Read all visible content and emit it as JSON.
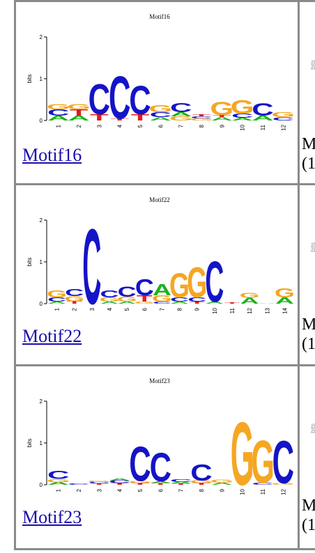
{
  "motifs": [
    {
      "name": "Motif16",
      "logo_title": "Motif16",
      "link_text": "Motif16",
      "ylabel": "bits",
      "yticks": [
        "0",
        "1",
        "2"
      ],
      "positions": [
        "1",
        "2",
        "3",
        "4",
        "5",
        "6",
        "7",
        "8",
        "9",
        "10",
        "11",
        "12"
      ],
      "columns": [
        [
          [
            "A",
            0.12
          ],
          [
            "C",
            0.15
          ],
          [
            "G",
            0.13
          ]
        ],
        [
          [
            "A",
            0.12
          ],
          [
            "T",
            0.15
          ],
          [
            "G",
            0.13
          ]
        ],
        [
          [
            "T",
            0.15
          ],
          [
            "C",
            0.75
          ]
        ],
        [
          [
            "T",
            0.05
          ],
          [
            "C",
            1.05
          ]
        ],
        [
          [
            "T",
            0.15
          ],
          [
            "C",
            0.7
          ]
        ],
        [
          [
            "A",
            0.08
          ],
          [
            "C",
            0.12
          ],
          [
            "G",
            0.18
          ]
        ],
        [
          [
            "G",
            0.1
          ],
          [
            "A",
            0.1
          ],
          [
            "C",
            0.22
          ]
        ],
        [
          [
            "G",
            0.05
          ],
          [
            "C",
            0.05
          ],
          [
            "T",
            0.05
          ]
        ],
        [
          [
            "A",
            0.08
          ],
          [
            "T",
            0.05
          ],
          [
            "G",
            0.32
          ]
        ],
        [
          [
            "A",
            0.07
          ],
          [
            "C",
            0.1
          ],
          [
            "G",
            0.33
          ]
        ],
        [
          [
            "A",
            0.12
          ],
          [
            "C",
            0.3
          ]
        ],
        [
          [
            "C",
            0.08
          ],
          [
            "G",
            0.12
          ]
        ]
      ]
    },
    {
      "name": "Motif22",
      "logo_title": "Motif22",
      "link_text": "Motif22",
      "ylabel": "bits",
      "yticks": [
        "0",
        "1",
        "2"
      ],
      "positions": [
        "1",
        "2",
        "3",
        "4",
        "5",
        "6",
        "7",
        "8",
        "9",
        "10",
        "11",
        "12",
        "13",
        "14"
      ],
      "columns": [
        [
          [
            "A",
            0.05
          ],
          [
            "C",
            0.1
          ],
          [
            "G",
            0.18
          ]
        ],
        [
          [
            "T",
            0.06
          ],
          [
            "G",
            0.12
          ],
          [
            "C",
            0.18
          ]
        ],
        [
          [
            "C",
            1.85
          ]
        ],
        [
          [
            "A",
            0.05
          ],
          [
            "G",
            0.1
          ],
          [
            "C",
            0.18
          ]
        ],
        [
          [
            "A",
            0.05
          ],
          [
            "G",
            0.12
          ],
          [
            "C",
            0.25
          ]
        ],
        [
          [
            "G",
            0.05
          ],
          [
            "T",
            0.15
          ],
          [
            "C",
            0.4
          ]
        ],
        [
          [
            "C",
            0.05
          ],
          [
            "G",
            0.15
          ],
          [
            "A",
            0.28
          ]
        ],
        [
          [
            "A",
            0.05
          ],
          [
            "C",
            0.1
          ],
          [
            "G",
            0.6
          ]
        ],
        [
          [
            "T",
            0.05
          ],
          [
            "C",
            0.1
          ],
          [
            "G",
            0.75
          ]
        ],
        [
          [
            "A",
            0.05
          ],
          [
            "C",
            1.0
          ]
        ],
        [
          [
            "T",
            0.03
          ]
        ],
        [
          [
            "A",
            0.14
          ],
          [
            "G",
            0.12
          ]
        ],
        [
          [
            "A",
            0.01
          ]
        ],
        [
          [
            "A",
            0.15
          ],
          [
            "G",
            0.22
          ]
        ]
      ]
    },
    {
      "name": "Motif23",
      "logo_title": "Motif23",
      "link_text": "Motif23",
      "ylabel": "bits",
      "yticks": [
        "0",
        "1",
        "2"
      ],
      "positions": [
        "1",
        "2",
        "3",
        "4",
        "5",
        "6",
        "7",
        "8",
        "9",
        "10",
        "11",
        "12"
      ],
      "columns": [
        [
          [
            "A",
            0.06
          ],
          [
            "G",
            0.08
          ],
          [
            "C",
            0.2
          ]
        ],
        [
          [
            "C",
            0.03
          ]
        ],
        [
          [
            "T",
            0.03
          ],
          [
            "C",
            0.04
          ],
          [
            "G",
            0.03
          ]
        ],
        [
          [
            "T",
            0.04
          ],
          [
            "C",
            0.06
          ],
          [
            "A",
            0.05
          ]
        ],
        [
          [
            "T",
            0.04
          ],
          [
            "G",
            0.05
          ],
          [
            "C",
            0.85
          ]
        ],
        [
          [
            "T",
            0.04
          ],
          [
            "A",
            0.04
          ],
          [
            "C",
            0.7
          ]
        ],
        [
          [
            "T",
            0.03
          ],
          [
            "A",
            0.04
          ],
          [
            "C",
            0.06
          ]
        ],
        [
          [
            "T",
            0.04
          ],
          [
            "G",
            0.06
          ],
          [
            "C",
            0.4
          ]
        ],
        [
          [
            "A",
            0.05
          ],
          [
            "G",
            0.08
          ]
        ],
        [
          [
            "G",
            1.55
          ]
        ],
        [
          [
            "C",
            0.05
          ],
          [
            "G",
            1.05
          ]
        ],
        [
          [
            "G",
            0.04
          ],
          [
            "C",
            1.05
          ]
        ]
      ]
    }
  ],
  "cut_text": [
    {
      "line1": "M",
      "line2": "(1"
    },
    {
      "line1": "M",
      "line2": "(1"
    },
    {
      "line1": "M",
      "line2": "(1"
    }
  ],
  "cut_ylabel": "bits",
  "colors": {
    "A": "#1bb31b",
    "C": "#1414c8",
    "G": "#f5a623",
    "T": "#e01c1c",
    "link": "#1a0dab",
    "border": "#8a8a8a"
  }
}
